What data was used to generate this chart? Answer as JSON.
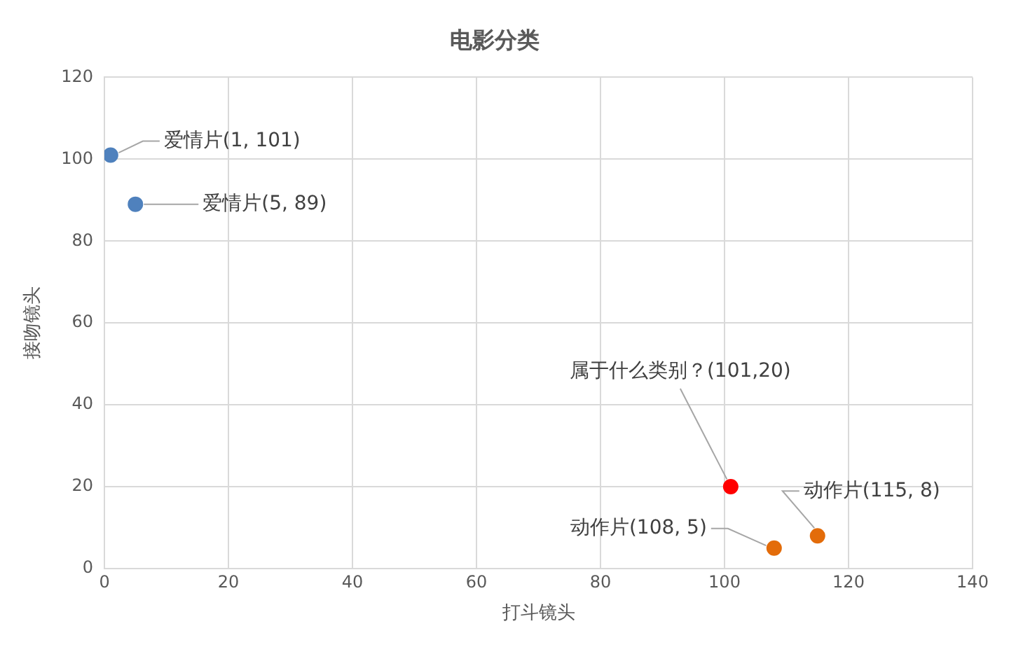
{
  "chart_data": {
    "type": "scatter",
    "title": "电影分类",
    "xlabel": "打斗镜头",
    "ylabel": "接吻镜头",
    "x": [
      1,
      5,
      101,
      108,
      115
    ],
    "values": [
      101,
      89,
      20,
      5,
      8
    ],
    "colors": [
      "#4f81bd",
      "#4f81bd",
      "#ff0000",
      "#e36c0a",
      "#e36c0a"
    ],
    "xlim": [
      0,
      140
    ],
    "xticks": [
      0,
      20,
      40,
      60,
      80,
      100,
      120,
      140
    ],
    "ylim": [
      0,
      120
    ],
    "yticks": [
      0,
      20,
      40,
      60,
      80,
      100,
      120
    ],
    "grid": true,
    "legend": false,
    "marker": "circle",
    "annotations": [
      {
        "text": "爱情片(1, 101)",
        "x": 1,
        "y": 101
      },
      {
        "text": "爱情片(5, 89)",
        "x": 5,
        "y": 89
      },
      {
        "text": "属于什么类别？(101,20)",
        "x": 101,
        "y": 20
      },
      {
        "text": "动作片(108, 5)",
        "x": 108,
        "y": 5
      },
      {
        "text": "动作片(115, 8)",
        "x": 115,
        "y": 8
      }
    ]
  }
}
